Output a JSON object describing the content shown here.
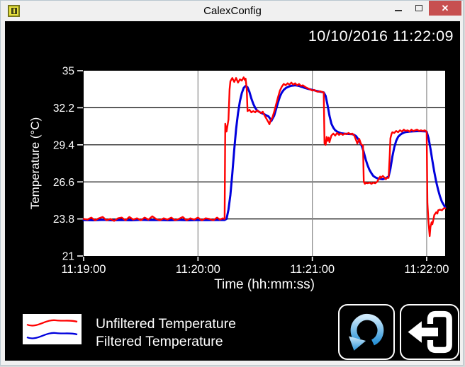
{
  "window": {
    "title": "CalexConfig",
    "close_icon": "✕"
  },
  "header": {
    "timestamp": "10/10/2016 11:22:09"
  },
  "colors": {
    "client_background": "#000000",
    "plot_background": "#ffffff",
    "unfiltered_series": "#ff0000",
    "filtered_series": "#0000dd",
    "horizontal_grid": "#000000",
    "vertical_grid": "#8a8a8a",
    "axis_text": "#ffffff",
    "titlebar_close": "#c75050",
    "refresh_icon_accent": "#2b93d8"
  },
  "legend": {
    "items": [
      {
        "label": "Unfiltered Temperature",
        "color": "#ff0000"
      },
      {
        "label": "Filtered Temperature",
        "color": "#0000dd"
      }
    ]
  },
  "chart_data": {
    "type": "line",
    "title": "",
    "xlabel": "Time (hh:mm:ss)",
    "ylabel": "Temperature (°C)",
    "ylim": [
      21,
      35
    ],
    "y_ticks": [
      35,
      32.2,
      29.4,
      26.6,
      23.8,
      21
    ],
    "x_axis": {
      "range_seconds": [
        0,
        189.7
      ],
      "tick_seconds": [
        0,
        60,
        120,
        180
      ],
      "tick_labels": [
        "11:19:00",
        "11:20:00",
        "11:21:00",
        "11:22:00"
      ]
    },
    "grid": {
      "horizontal": true,
      "vertical": true
    },
    "legend_position": "bottom-left",
    "series": [
      {
        "name": "Filtered Temperature",
        "color": "#0000dd",
        "width": 3,
        "points": [
          [
            0,
            23.72
          ],
          [
            5,
            23.7
          ],
          [
            10,
            23.73
          ],
          [
            15,
            23.7
          ],
          [
            20,
            23.72
          ],
          [
            25,
            23.7
          ],
          [
            30,
            23.73
          ],
          [
            35,
            23.71
          ],
          [
            40,
            23.72
          ],
          [
            45,
            23.7
          ],
          [
            50,
            23.72
          ],
          [
            55,
            23.7
          ],
          [
            60,
            23.72
          ],
          [
            65,
            23.71
          ],
          [
            70,
            23.72
          ],
          [
            74,
            23.72
          ],
          [
            75,
            23.8
          ],
          [
            76,
            24.5
          ],
          [
            77,
            25.6
          ],
          [
            78,
            27.2
          ],
          [
            79,
            29.0
          ],
          [
            80,
            30.6
          ],
          [
            81,
            31.8
          ],
          [
            82,
            32.7
          ],
          [
            83,
            33.3
          ],
          [
            84,
            33.7
          ],
          [
            85,
            33.85
          ],
          [
            86,
            33.75
          ],
          [
            87,
            33.4
          ],
          [
            88,
            32.9
          ],
          [
            89,
            32.5
          ],
          [
            90,
            32.2
          ],
          [
            91,
            32.0
          ],
          [
            92,
            31.9
          ],
          [
            93,
            31.82
          ],
          [
            94,
            31.76
          ],
          [
            95,
            31.7
          ],
          [
            96,
            31.62
          ],
          [
            97,
            31.55
          ],
          [
            98,
            31.35
          ],
          [
            98.5,
            31.2
          ],
          [
            99,
            31.35
          ],
          [
            100,
            31.6
          ],
          [
            101,
            32.1
          ],
          [
            102,
            32.6
          ],
          [
            103,
            33.05
          ],
          [
            104,
            33.35
          ],
          [
            105,
            33.55
          ],
          [
            106,
            33.68
          ],
          [
            107,
            33.76
          ],
          [
            108,
            33.82
          ],
          [
            109,
            33.86
          ],
          [
            110,
            33.88
          ],
          [
            111,
            33.9
          ],
          [
            112,
            33.88
          ],
          [
            113,
            33.85
          ],
          [
            114,
            33.8
          ],
          [
            115,
            33.76
          ],
          [
            116,
            33.7
          ],
          [
            118,
            33.62
          ],
          [
            120,
            33.55
          ],
          [
            122,
            33.48
          ],
          [
            124,
            33.42
          ],
          [
            126,
            33.36
          ],
          [
            127,
            33.1
          ],
          [
            128,
            32.4
          ],
          [
            129,
            31.6
          ],
          [
            130,
            31.0
          ],
          [
            131,
            30.7
          ],
          [
            132,
            30.5
          ],
          [
            133,
            30.4
          ],
          [
            134,
            30.33
          ],
          [
            135,
            30.28
          ],
          [
            136,
            30.26
          ],
          [
            137,
            30.24
          ],
          [
            138,
            30.23
          ],
          [
            139,
            30.22
          ],
          [
            140,
            30.21
          ],
          [
            141,
            30.2
          ],
          [
            142,
            30.15
          ],
          [
            143,
            30.05
          ],
          [
            144,
            29.85
          ],
          [
            145,
            29.6
          ],
          [
            146,
            29.3
          ],
          [
            147,
            28.85
          ],
          [
            148,
            28.3
          ],
          [
            149,
            27.85
          ],
          [
            150,
            27.5
          ],
          [
            151,
            27.25
          ],
          [
            152,
            27.05
          ],
          [
            153,
            26.95
          ],
          [
            154,
            26.88
          ],
          [
            155,
            26.84
          ],
          [
            156,
            26.82
          ],
          [
            157,
            26.8
          ],
          [
            158,
            26.85
          ],
          [
            159,
            26.92
          ],
          [
            160,
            27.0
          ],
          [
            161,
            27.6
          ],
          [
            162,
            28.5
          ],
          [
            163,
            29.2
          ],
          [
            164,
            29.7
          ],
          [
            165,
            30.0
          ],
          [
            166,
            30.15
          ],
          [
            167,
            30.25
          ],
          [
            168,
            30.32
          ],
          [
            169,
            30.36
          ],
          [
            170,
            30.38
          ],
          [
            171,
            30.4
          ],
          [
            173,
            30.42
          ],
          [
            175,
            30.43
          ],
          [
            177,
            30.43
          ],
          [
            179,
            30.42
          ],
          [
            180,
            30.4
          ],
          [
            181,
            29.9
          ],
          [
            182,
            29.1
          ],
          [
            183,
            28.2
          ],
          [
            184,
            27.35
          ],
          [
            185,
            26.6
          ],
          [
            186,
            26.0
          ],
          [
            187,
            25.5
          ],
          [
            188,
            25.1
          ],
          [
            189,
            24.85
          ],
          [
            189.7,
            24.68
          ]
        ]
      },
      {
        "name": "Unfiltered Temperature",
        "color": "#ff0000",
        "width": 2.4,
        "points": [
          [
            0,
            23.8
          ],
          [
            2,
            23.75
          ],
          [
            4,
            23.9
          ],
          [
            6,
            23.7
          ],
          [
            8,
            23.85
          ],
          [
            10,
            23.95
          ],
          [
            12,
            23.7
          ],
          [
            14,
            23.8
          ],
          [
            16,
            23.65
          ],
          [
            18,
            23.85
          ],
          [
            20,
            23.9
          ],
          [
            22,
            23.7
          ],
          [
            24,
            23.95
          ],
          [
            26,
            23.75
          ],
          [
            28,
            23.85
          ],
          [
            30,
            23.7
          ],
          [
            32,
            23.9
          ],
          [
            34,
            23.75
          ],
          [
            36,
            24.0
          ],
          [
            38,
            23.8
          ],
          [
            40,
            23.7
          ],
          [
            42,
            23.85
          ],
          [
            44,
            23.75
          ],
          [
            46,
            23.9
          ],
          [
            48,
            23.7
          ],
          [
            50,
            23.8
          ],
          [
            52,
            23.95
          ],
          [
            54,
            23.7
          ],
          [
            56,
            23.85
          ],
          [
            58,
            23.75
          ],
          [
            60,
            23.9
          ],
          [
            62,
            23.7
          ],
          [
            64,
            23.85
          ],
          [
            66,
            23.8
          ],
          [
            68,
            23.7
          ],
          [
            70,
            23.9
          ],
          [
            71.5,
            23.75
          ],
          [
            73,
            23.85
          ],
          [
            74,
            23.8
          ],
          [
            74.3,
            31.0
          ],
          [
            75,
            30.4
          ],
          [
            76,
            31.3
          ],
          [
            76.6,
            33.6
          ],
          [
            77,
            34.2
          ],
          [
            78,
            34.45
          ],
          [
            79,
            34.15
          ],
          [
            80,
            34.45
          ],
          [
            81,
            34.1
          ],
          [
            82,
            34.35
          ],
          [
            83,
            34.25
          ],
          [
            84,
            34.5
          ],
          [
            84.6,
            34.3
          ],
          [
            85,
            34.4
          ],
          [
            85.6,
            33.6
          ],
          [
            86,
            31.95
          ],
          [
            87,
            32.05
          ],
          [
            88,
            31.85
          ],
          [
            89,
            31.95
          ],
          [
            90,
            31.85
          ],
          [
            91,
            32.0
          ],
          [
            92,
            31.9
          ],
          [
            93,
            31.8
          ],
          [
            94,
            31.9
          ],
          [
            95,
            31.6
          ],
          [
            96,
            31.35
          ],
          [
            97,
            31.1
          ],
          [
            97.5,
            30.95
          ],
          [
            98,
            31.2
          ],
          [
            99,
            31.45
          ],
          [
            100,
            31.9
          ],
          [
            101,
            32.45
          ],
          [
            102,
            33.0
          ],
          [
            103,
            33.5
          ],
          [
            104,
            33.8
          ],
          [
            105,
            34.0
          ],
          [
            106,
            33.9
          ],
          [
            107,
            34.05
          ],
          [
            108,
            33.95
          ],
          [
            109,
            34.1
          ],
          [
            110,
            33.95
          ],
          [
            111,
            34.05
          ],
          [
            112,
            33.9
          ],
          [
            113,
            34.0
          ],
          [
            114,
            33.85
          ],
          [
            115,
            33.9
          ],
          [
            116,
            33.8
          ],
          [
            117,
            33.72
          ],
          [
            118,
            33.65
          ],
          [
            119,
            33.58
          ],
          [
            120,
            33.5
          ],
          [
            121,
            33.55
          ],
          [
            122,
            33.45
          ],
          [
            123,
            33.4
          ],
          [
            124,
            33.45
          ],
          [
            125,
            33.4
          ],
          [
            126,
            33.35
          ],
          [
            126.4,
            29.5
          ],
          [
            127,
            29.4
          ],
          [
            127.5,
            30.0
          ],
          [
            128,
            29.7
          ],
          [
            128.6,
            29.95
          ],
          [
            129,
            29.6
          ],
          [
            130,
            30.1
          ],
          [
            131,
            30.25
          ],
          [
            132,
            30.1
          ],
          [
            133,
            30.3
          ],
          [
            134,
            30.15
          ],
          [
            135,
            30.25
          ],
          [
            136,
            30.15
          ],
          [
            137,
            30.25
          ],
          [
            138,
            30.2
          ],
          [
            139,
            30.3
          ],
          [
            140,
            30.2
          ],
          [
            141,
            30.25
          ],
          [
            142,
            30.1
          ],
          [
            143,
            29.75
          ],
          [
            143.6,
            29.5
          ],
          [
            144,
            29.65
          ],
          [
            144.6,
            29.85
          ],
          [
            145,
            29.7
          ],
          [
            145.6,
            29.45
          ],
          [
            146,
            29.4
          ],
          [
            146.6,
            29.35
          ],
          [
            147,
            26.6
          ],
          [
            147.6,
            26.45
          ],
          [
            148,
            26.55
          ],
          [
            149,
            26.5
          ],
          [
            150,
            26.55
          ],
          [
            151,
            26.45
          ],
          [
            152,
            26.55
          ],
          [
            153,
            26.5
          ],
          [
            154,
            26.6
          ],
          [
            155,
            26.85
          ],
          [
            155.6,
            27.0
          ],
          [
            156,
            26.9
          ],
          [
            157,
            27.05
          ],
          [
            158,
            26.9
          ],
          [
            158.6,
            26.8
          ],
          [
            159,
            26.9
          ],
          [
            160,
            26.9
          ],
          [
            160.6,
            28.6
          ],
          [
            161,
            29.9
          ],
          [
            161.6,
            30.25
          ],
          [
            162,
            30.35
          ],
          [
            163,
            30.3
          ],
          [
            164,
            30.45
          ],
          [
            165,
            30.35
          ],
          [
            166,
            30.5
          ],
          [
            167,
            30.4
          ],
          [
            168,
            30.55
          ],
          [
            169,
            30.45
          ],
          [
            170,
            30.5
          ],
          [
            171,
            30.4
          ],
          [
            172,
            30.55
          ],
          [
            173,
            30.45
          ],
          [
            174,
            30.5
          ],
          [
            175,
            30.55
          ],
          [
            176,
            30.45
          ],
          [
            177,
            30.5
          ],
          [
            178,
            30.45
          ],
          [
            179,
            30.5
          ],
          [
            180,
            30.4
          ],
          [
            180.4,
            25.0
          ],
          [
            181,
            23.5
          ],
          [
            181.6,
            22.5
          ],
          [
            182,
            23.2
          ],
          [
            182.6,
            23.55
          ],
          [
            183,
            23.4
          ],
          [
            183.6,
            23.8
          ],
          [
            184,
            24.1
          ],
          [
            185,
            24.3
          ],
          [
            185.6,
            24.2
          ],
          [
            186,
            24.45
          ],
          [
            187,
            24.5
          ],
          [
            188,
            24.45
          ],
          [
            189,
            24.6
          ],
          [
            189.7,
            24.6
          ]
        ]
      }
    ]
  },
  "buttons": {
    "refresh": {
      "icon": "circular-arrow-refresh"
    },
    "exit": {
      "icon": "exit-door-arrow"
    }
  }
}
